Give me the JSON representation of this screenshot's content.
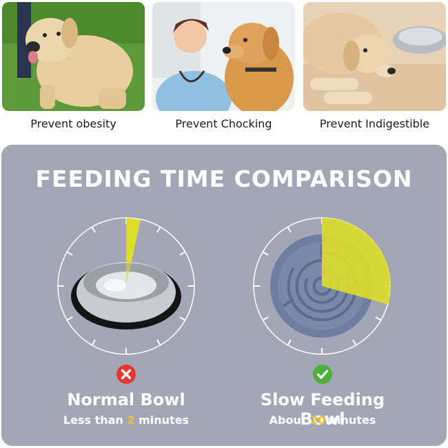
{
  "benefits": [
    {
      "label": "Prevent obesity",
      "icon": "overweight-dog-photo"
    },
    {
      "label": "Prevent Chocking",
      "icon": "vet-with-dog-photo"
    },
    {
      "label": "Prevent Indigestible",
      "icon": "dog-lying-by-bowl-photo"
    }
  ],
  "comparison": {
    "title": "FEEDING TIME COMPARISON",
    "normal": {
      "name": "Normal Bowl",
      "time_prefix": "Less than ",
      "time_value": "2",
      "time_suffix": " minutes",
      "status_icon": "x-circle-icon",
      "status_color": "#e8362e"
    },
    "slow": {
      "name": "Slow Feeding Bowl",
      "time_prefix": "About ",
      "time_value": "20",
      "time_suffix": "minutes",
      "status_icon": "check-circle-icon",
      "status_color": "#4caf3a"
    }
  },
  "colors": {
    "panel": "#a3a6b5",
    "highlight": "#f6c026",
    "sector": "#dedd2a"
  }
}
